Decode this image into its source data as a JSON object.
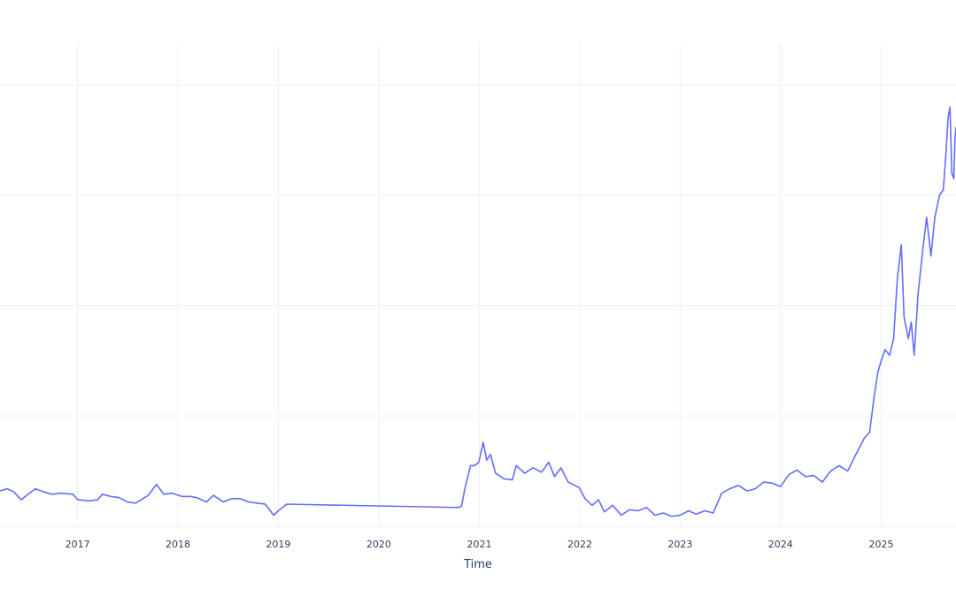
{
  "chart_data": {
    "type": "line",
    "title": "",
    "xlabel": "Time",
    "ylabel": "",
    "grid": true,
    "legend": "none",
    "line_color": "#636efa",
    "grid_color": "#ebf0f8",
    "x_tick_labels": [
      "2017",
      "2018",
      "2019",
      "2020",
      "2021",
      "2022",
      "2023",
      "2024",
      "2025"
    ],
    "x_range": [
      "2016-03-25",
      "2025-09-30"
    ],
    "y_range": [
      0,
      4.2
    ],
    "y_gridlines": [
      0,
      1,
      2,
      3,
      4
    ],
    "series": [
      {
        "points": [
          [
            "2016-03-25",
            0.32
          ],
          [
            "2016-04-20",
            0.34
          ],
          [
            "2016-05-15",
            0.31
          ],
          [
            "2016-06-10",
            0.24
          ],
          [
            "2016-07-05",
            0.29
          ],
          [
            "2016-08-01",
            0.34
          ],
          [
            "2016-09-01",
            0.31
          ],
          [
            "2016-10-01",
            0.29
          ],
          [
            "2016-11-01",
            0.3
          ],
          [
            "2016-12-15",
            0.29
          ],
          [
            "2017-01-02",
            0.24
          ],
          [
            "2017-02-15",
            0.23
          ],
          [
            "2017-03-15",
            0.24
          ],
          [
            "2017-04-01",
            0.29
          ],
          [
            "2017-05-01",
            0.27
          ],
          [
            "2017-06-01",
            0.26
          ],
          [
            "2017-07-01",
            0.22
          ],
          [
            "2017-08-01",
            0.21
          ],
          [
            "2017-09-15",
            0.28
          ],
          [
            "2017-10-15",
            0.38
          ],
          [
            "2017-11-10",
            0.29
          ],
          [
            "2017-12-10",
            0.3
          ],
          [
            "2018-01-15",
            0.27
          ],
          [
            "2018-02-15",
            0.27
          ],
          [
            "2018-03-10",
            0.26
          ],
          [
            "2018-04-15",
            0.22
          ],
          [
            "2018-05-10",
            0.28
          ],
          [
            "2018-06-15",
            0.22
          ],
          [
            "2018-07-15",
            0.25
          ],
          [
            "2018-08-15",
            0.25
          ],
          [
            "2018-09-15",
            0.22
          ],
          [
            "2018-10-15",
            0.21
          ],
          [
            "2018-11-15",
            0.2
          ],
          [
            "2018-12-15",
            0.1
          ],
          [
            "2019-01-01",
            0.14
          ],
          [
            "2019-02-01",
            0.2
          ],
          [
            "2020-10-15",
            0.17
          ],
          [
            "2020-10-28",
            0.18
          ],
          [
            "2020-11-10",
            0.35
          ],
          [
            "2020-11-30",
            0.55
          ],
          [
            "2020-12-15",
            0.55
          ],
          [
            "2020-12-30",
            0.58
          ],
          [
            "2021-01-15",
            0.76
          ],
          [
            "2021-01-28",
            0.6
          ],
          [
            "2021-02-10",
            0.65
          ],
          [
            "2021-03-01",
            0.48
          ],
          [
            "2021-04-01",
            0.43
          ],
          [
            "2021-05-01",
            0.42
          ],
          [
            "2021-05-15",
            0.55
          ],
          [
            "2021-06-15",
            0.48
          ],
          [
            "2021-07-15",
            0.53
          ],
          [
            "2021-08-15",
            0.49
          ],
          [
            "2021-09-10",
            0.58
          ],
          [
            "2021-10-01",
            0.45
          ],
          [
            "2021-10-25",
            0.53
          ],
          [
            "2021-11-20",
            0.4
          ],
          [
            "2021-12-30",
            0.35
          ],
          [
            "2022-01-20",
            0.25
          ],
          [
            "2022-02-15",
            0.19
          ],
          [
            "2022-03-10",
            0.24
          ],
          [
            "2022-04-01",
            0.13
          ],
          [
            "2022-05-01",
            0.19
          ],
          [
            "2022-06-01",
            0.1
          ],
          [
            "2022-07-01",
            0.15
          ],
          [
            "2022-08-01",
            0.14
          ],
          [
            "2022-09-01",
            0.17
          ],
          [
            "2022-10-01",
            0.1
          ],
          [
            "2022-11-01",
            0.12
          ],
          [
            "2022-12-01",
            0.09
          ],
          [
            "2023-01-01",
            0.1
          ],
          [
            "2023-02-01",
            0.14
          ],
          [
            "2023-03-01",
            0.11
          ],
          [
            "2023-04-01",
            0.14
          ],
          [
            "2023-05-01",
            0.12
          ],
          [
            "2023-06-01",
            0.3
          ],
          [
            "2023-07-01",
            0.34
          ],
          [
            "2023-08-01",
            0.37
          ],
          [
            "2023-09-01",
            0.32
          ],
          [
            "2023-10-01",
            0.34
          ],
          [
            "2023-11-01",
            0.4
          ],
          [
            "2023-12-01",
            0.39
          ],
          [
            "2024-01-01",
            0.36
          ],
          [
            "2024-02-01",
            0.47
          ],
          [
            "2024-03-01",
            0.51
          ],
          [
            "2024-04-01",
            0.45
          ],
          [
            "2024-05-01",
            0.46
          ],
          [
            "2024-06-01",
            0.4
          ],
          [
            "2024-07-01",
            0.5
          ],
          [
            "2024-08-01",
            0.55
          ],
          [
            "2024-09-01",
            0.5
          ],
          [
            "2024-10-01",
            0.65
          ],
          [
            "2024-11-01",
            0.8
          ],
          [
            "2024-11-20",
            0.85
          ],
          [
            "2024-12-05",
            1.15
          ],
          [
            "2024-12-20",
            1.4
          ],
          [
            "2025-01-01",
            1.5
          ],
          [
            "2025-01-15",
            1.6
          ],
          [
            "2025-02-01",
            1.55
          ],
          [
            "2025-02-15",
            1.7
          ],
          [
            "2025-03-01",
            2.25
          ],
          [
            "2025-03-15",
            2.55
          ],
          [
            "2025-03-25",
            1.9
          ],
          [
            "2025-04-10",
            1.7
          ],
          [
            "2025-04-20",
            1.85
          ],
          [
            "2025-05-01",
            1.55
          ],
          [
            "2025-05-15",
            2.1
          ],
          [
            "2025-06-01",
            2.5
          ],
          [
            "2025-06-15",
            2.8
          ],
          [
            "2025-07-01",
            2.45
          ],
          [
            "2025-07-15",
            2.8
          ],
          [
            "2025-08-01",
            3.0
          ],
          [
            "2025-08-15",
            3.05
          ],
          [
            "2025-08-25",
            3.4
          ],
          [
            "2025-09-01",
            3.7
          ],
          [
            "2025-09-08",
            3.8
          ],
          [
            "2025-09-15",
            3.2
          ],
          [
            "2025-09-22",
            3.15
          ],
          [
            "2025-09-26",
            3.5
          ],
          [
            "2025-09-30",
            3.62
          ]
        ]
      }
    ]
  }
}
